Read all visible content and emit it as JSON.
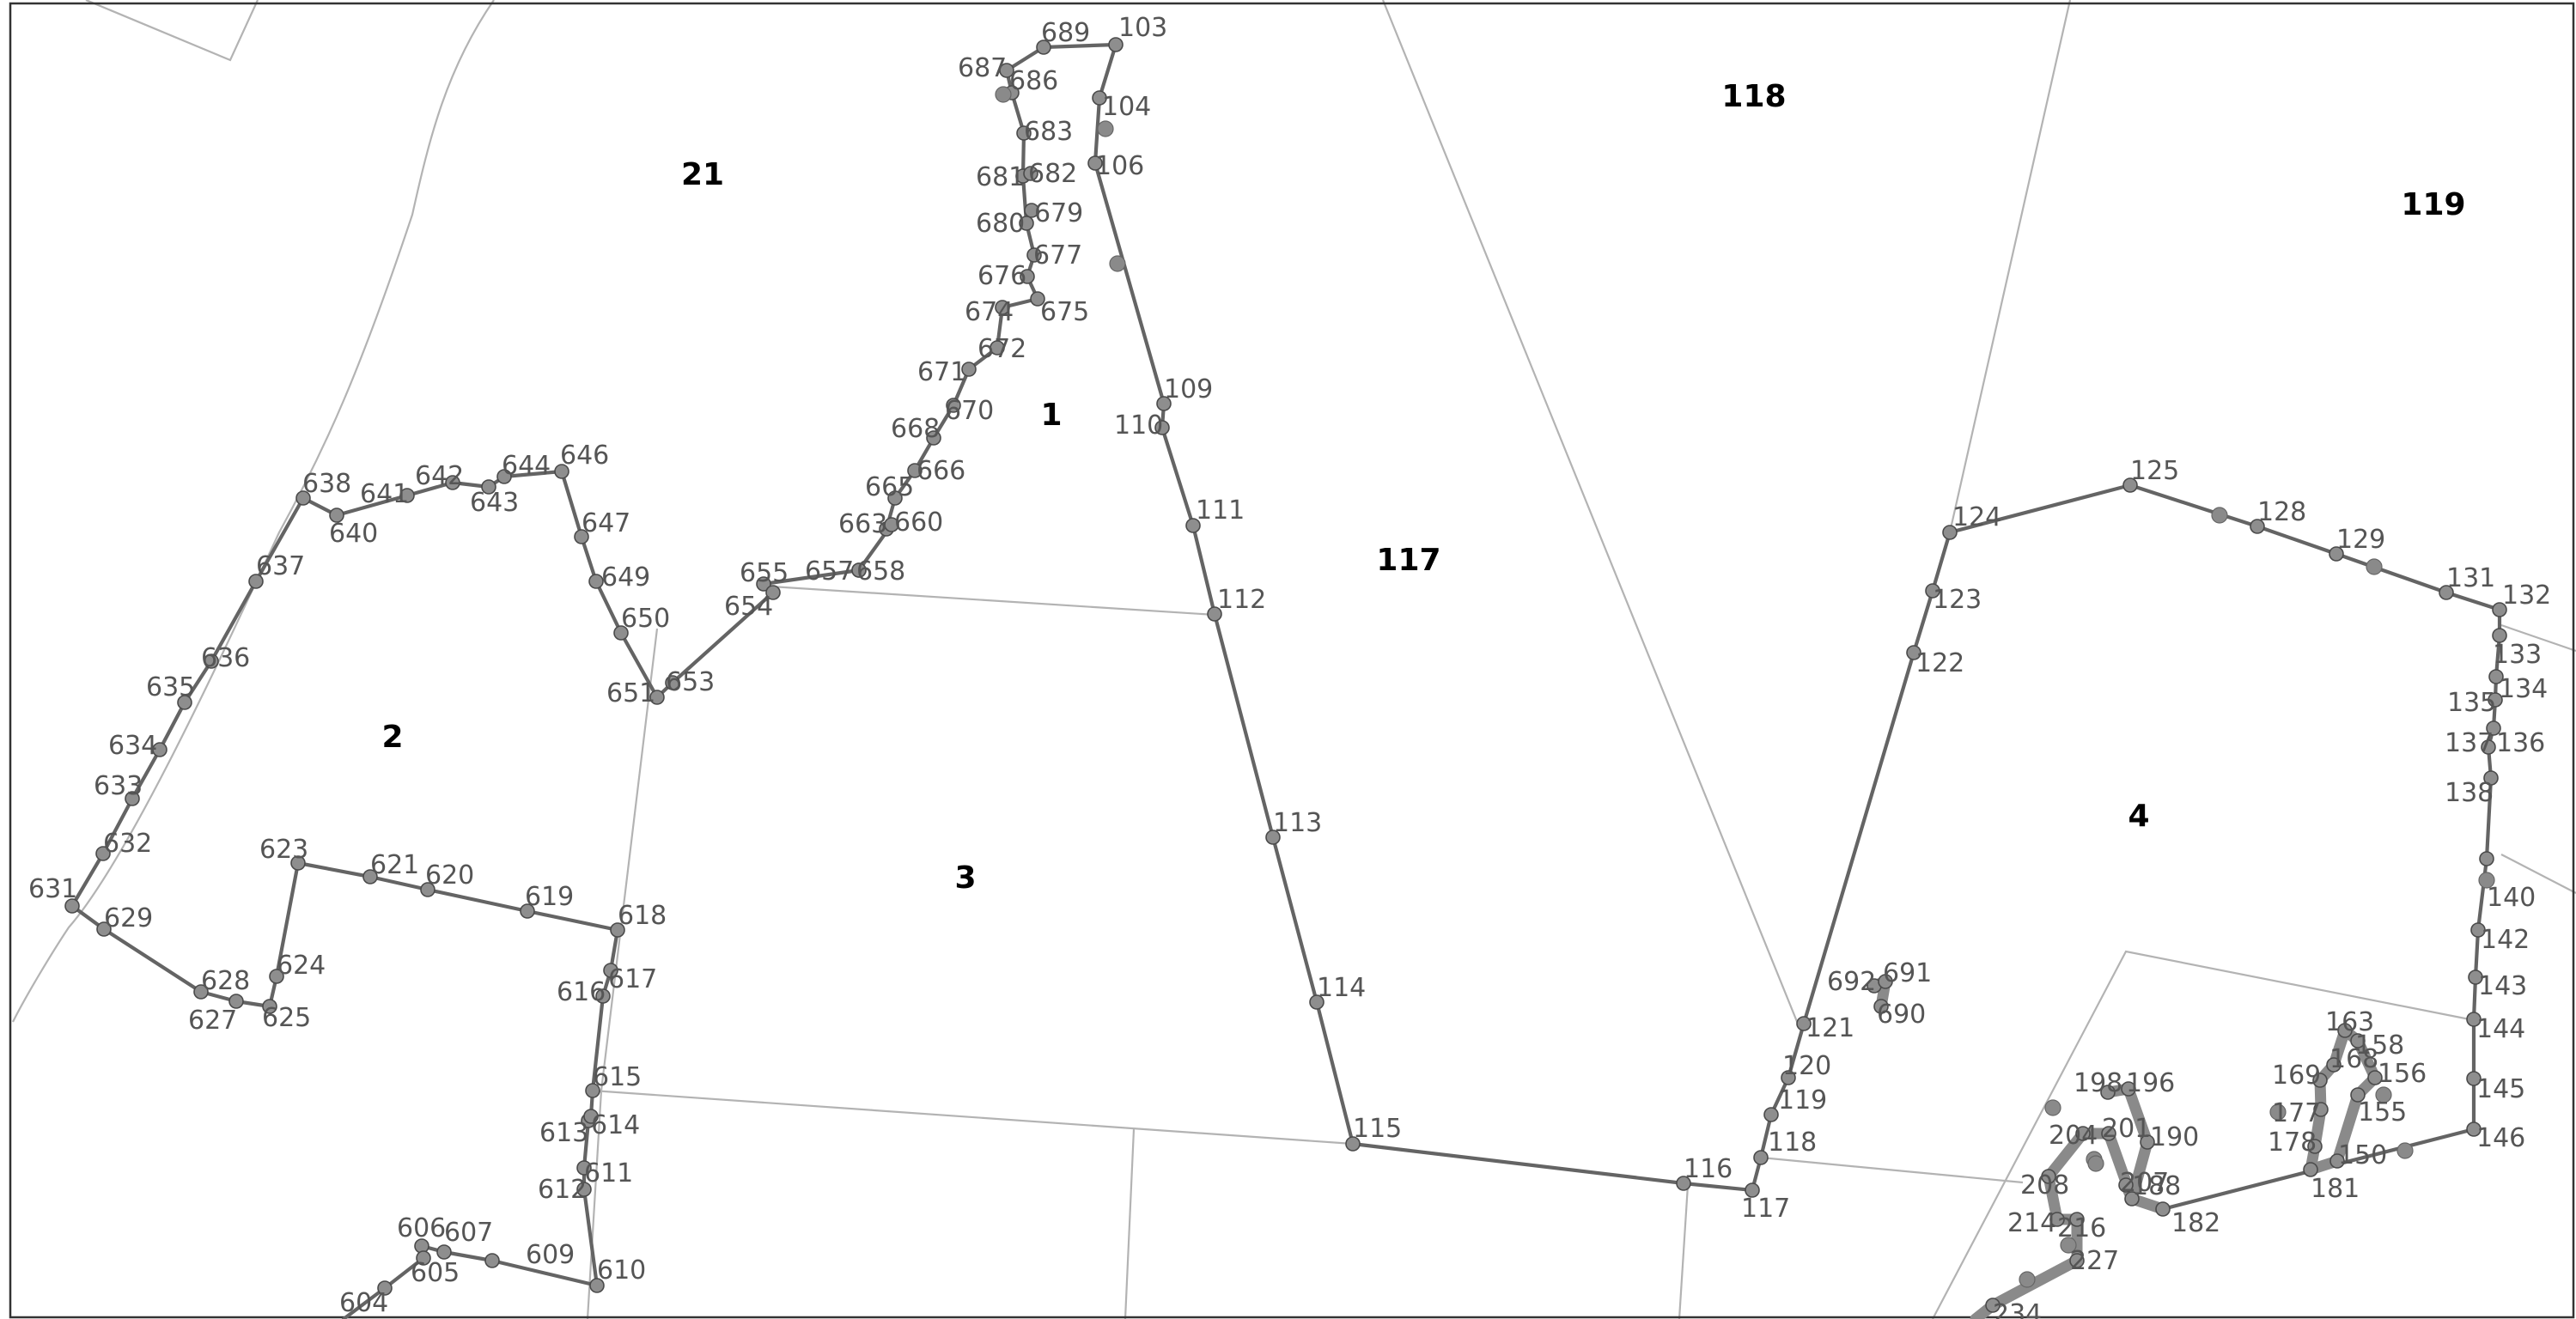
{
  "parcels": [
    {
      "label": "21"
    },
    {
      "label": "118"
    },
    {
      "label": "119"
    },
    {
      "label": "1"
    },
    {
      "label": "117"
    },
    {
      "label": "2"
    },
    {
      "label": "3"
    },
    {
      "label": "4"
    }
  ],
  "points": [
    "103",
    "104",
    "106",
    "109",
    "110",
    "111",
    "112",
    "113",
    "114",
    "115",
    "116",
    "117",
    "118",
    "119",
    "120",
    "121",
    "122",
    "123",
    "124",
    "125",
    "128",
    "129",
    "131",
    "132",
    "133",
    "134",
    "135",
    "136",
    "137",
    "138",
    "140",
    "142",
    "143",
    "144",
    "145",
    "146",
    "150",
    "155",
    "156",
    "158",
    "163",
    "168",
    "169",
    "177",
    "178",
    "181",
    "182",
    "188",
    "190",
    "196",
    "198",
    "201",
    "204",
    "207",
    "208",
    "214",
    "216",
    "227",
    "234",
    "604",
    "605",
    "606",
    "607",
    "609",
    "610",
    "611",
    "612",
    "613",
    "614",
    "615",
    "616",
    "617",
    "618",
    "619",
    "620",
    "621",
    "623",
    "624",
    "625",
    "627",
    "628",
    "629",
    "631",
    "632",
    "633",
    "634",
    "635",
    "636",
    "637",
    "638",
    "640",
    "641",
    "642",
    "643",
    "644",
    "646",
    "647",
    "649",
    "650",
    "651",
    "653",
    "654",
    "655",
    "657",
    "658",
    "660",
    "663",
    "665",
    "666",
    "668",
    "670",
    "671",
    "672",
    "674",
    "675",
    "676",
    "677",
    "679",
    "680",
    "681",
    "682",
    "683",
    "686",
    "687",
    "689",
    "690",
    "691",
    "692"
  ]
}
